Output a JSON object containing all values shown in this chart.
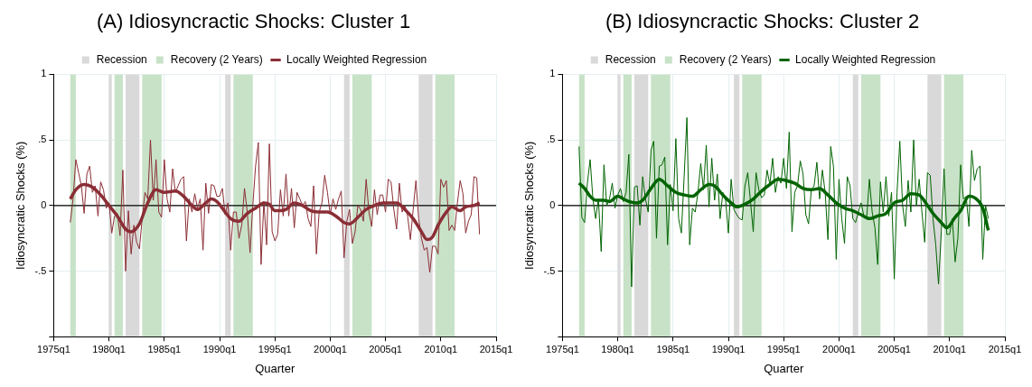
{
  "chart_data": [
    {
      "type": "line",
      "title": "(A) Idiosyncractic Shocks: Cluster 1",
      "xlabel": "Quarter",
      "ylabel": "Idiosyncratic Shocks (%)",
      "xlim": [
        "1975-01",
        "2015-01"
      ],
      "xticks": [
        {
          "value": "1975-01",
          "label": "1975q1"
        },
        {
          "value": "1980-01",
          "label": "1980q1"
        },
        {
          "value": "1985-01",
          "label": "1985q1"
        },
        {
          "value": "1990-01",
          "label": "1990q1"
        },
        {
          "value": "1995-01",
          "label": "1995q1"
        },
        {
          "value": "2000-01",
          "label": "2000q1"
        },
        {
          "value": "2005-01",
          "label": "2005q1"
        },
        {
          "value": "2010-01",
          "label": "2010q1"
        },
        {
          "value": "2015-01",
          "label": "2015q1"
        }
      ],
      "ylim": [
        -1,
        1
      ],
      "yticks": [
        {
          "value": -1,
          "label": null
        },
        {
          "value": -0.5,
          "label": "-.5"
        },
        {
          "value": 0,
          "label": "0"
        },
        {
          "value": 0.5,
          "label": ".5"
        },
        {
          "value": 1,
          "label": "1"
        }
      ],
      "grid": true,
      "legend": "top",
      "bands": [
        {
          "axis": "x",
          "from": "1980-01",
          "to": "1980-04",
          "label": "Recession",
          "color": "#d9d9d9"
        },
        {
          "axis": "x",
          "from": "1981-07",
          "to": "1982-10",
          "color": "#d9d9d9"
        },
        {
          "axis": "x",
          "from": "1990-07",
          "to": "1991-01",
          "color": "#d9d9d9"
        },
        {
          "axis": "x",
          "from": "2001-04",
          "to": "2001-10",
          "color": "#d9d9d9"
        },
        {
          "axis": "x",
          "from": "2008-01",
          "to": "2009-04",
          "color": "#d9d9d9"
        },
        {
          "axis": "x",
          "from": "1976-07",
          "to": "1977-01",
          "label": "Recovery (2 Years)",
          "color": "#c8e2c8"
        },
        {
          "axis": "x",
          "from": "1980-07",
          "to": "1981-04",
          "color": "#c8e2c8"
        },
        {
          "axis": "x",
          "from": "1983-01",
          "to": "1984-10",
          "color": "#c8e2c8"
        },
        {
          "axis": "x",
          "from": "1991-04",
          "to": "1993-01",
          "color": "#c8e2c8"
        },
        {
          "axis": "x",
          "from": "2002-01",
          "to": "2003-10",
          "color": "#c8e2c8"
        },
        {
          "axis": "x",
          "from": "2009-07",
          "to": "2011-04",
          "color": "#c8e2c8"
        }
      ],
      "ref_lines": [
        {
          "axis": "y",
          "value": 0,
          "color": "#000000"
        }
      ],
      "series": [
        {
          "color": "#8b2e35",
          "x": [
            "1976-07",
            "1976-10",
            "1977-01",
            "1977-04",
            "1977-07",
            "1977-10",
            "1978-01",
            "1978-04",
            "1978-07",
            "1978-10",
            "1979-01",
            "1979-04",
            "1979-07",
            "1979-10",
            "1980-01",
            "1980-04",
            "1980-07",
            "1980-10",
            "1981-01",
            "1981-04",
            "1981-07",
            "1981-10",
            "1982-01",
            "1982-04",
            "1982-07",
            "1982-10",
            "1983-01",
            "1983-04",
            "1983-07",
            "1983-10",
            "1984-01",
            "1984-04",
            "1984-07",
            "1984-10",
            "1985-01",
            "1985-04",
            "1985-07",
            "1985-10",
            "1986-01",
            "1986-04",
            "1986-07",
            "1986-10",
            "1987-01",
            "1987-04",
            "1987-07",
            "1987-10",
            "1988-01",
            "1988-04",
            "1988-07",
            "1988-10",
            "1989-01",
            "1989-04",
            "1989-07",
            "1989-10",
            "1990-01",
            "1990-04",
            "1990-07",
            "1990-10",
            "1991-01",
            "1991-04",
            "1991-07",
            "1991-10",
            "1992-01",
            "1992-04",
            "1992-07",
            "1992-10",
            "1993-01",
            "1993-04",
            "1993-07",
            "1993-10",
            "1994-01",
            "1994-04",
            "1994-07",
            "1994-10",
            "1995-01",
            "1995-04",
            "1995-07",
            "1995-10",
            "1996-01",
            "1996-04",
            "1996-07",
            "1996-10",
            "1997-01",
            "1997-04",
            "1997-07",
            "1997-10",
            "1998-01",
            "1998-04",
            "1998-07",
            "1998-10",
            "1999-01",
            "1999-04",
            "1999-07",
            "1999-10",
            "2000-01",
            "2000-04",
            "2000-07",
            "2000-10",
            "2001-01",
            "2001-04",
            "2001-07",
            "2001-10",
            "2002-01",
            "2002-04",
            "2002-07",
            "2002-10",
            "2003-01",
            "2003-04",
            "2003-07",
            "2003-10",
            "2004-01",
            "2004-04",
            "2004-07",
            "2004-10",
            "2005-01",
            "2005-04",
            "2005-07",
            "2005-10",
            "2006-01",
            "2006-04",
            "2006-07",
            "2006-10",
            "2007-01",
            "2007-04",
            "2007-07",
            "2007-10",
            "2008-01",
            "2008-04",
            "2008-07",
            "2008-10",
            "2009-01",
            "2009-04",
            "2009-07",
            "2009-10",
            "2010-01",
            "2010-04",
            "2010-07",
            "2010-10",
            "2011-01",
            "2011-04",
            "2011-07",
            "2011-10",
            "2012-01",
            "2012-04",
            "2012-07",
            "2012-10",
            "2013-01",
            "2013-04",
            "2013-07"
          ],
          "values": [
            -0.13,
            0.05,
            0.35,
            0.25,
            0.15,
            -0.06,
            0.24,
            0.3,
            0.1,
            0.15,
            -0.08,
            0.18,
            0.12,
            -0.02,
            0.02,
            -0.21,
            -0.08,
            -0.06,
            -0.23,
            0.27,
            -0.5,
            -0.04,
            -0.37,
            -0.15,
            -0.28,
            -0.33,
            -0.1,
            0.1,
            0.05,
            0.5,
            0.04,
            0.35,
            -0.05,
            -0.09,
            0.35,
            0.05,
            -0.05,
            0.28,
            0.1,
            0.15,
            0.2,
            0.22,
            -0.27,
            0.05,
            -0.05,
            0.09,
            -0.02,
            0.05,
            -0.34,
            0.17,
            -0.06,
            0.16,
            0.15,
            0.07,
            0.07,
            0.13,
            -0.07,
            0.02,
            -0.34,
            -0.05,
            -0.05,
            -0.25,
            -0.15,
            0.13,
            -0.05,
            -0.36,
            0,
            0.3,
            0.48,
            -0.45,
            0.03,
            -0.3,
            0.47,
            -0.2,
            -0.27,
            -0.22,
            0.12,
            -0.08,
            0.24,
            -0.08,
            0.13,
            -0.17,
            0.1,
            0.05,
            0,
            0.03,
            -0.1,
            -0.16,
            0.15,
            -0.37,
            -0.05,
            0.02,
            0.23,
            0.1,
            -0.07,
            0.05,
            -0.03,
            0.05,
            0.11,
            -0.4,
            -0.12,
            -0.03,
            -0.29,
            -0.2,
            0,
            -0.03,
            -0.12,
            0.2,
            -0.05,
            -0.16,
            0.12,
            -0.07,
            0.08,
            0.08,
            -0.05,
            0.2,
            0.18,
            -0.03,
            -0.18,
            0.17,
            -0.05,
            0,
            -0.08,
            -0.26,
            -0.03,
            0.19,
            -0.1,
            -0.25,
            -0.34,
            -0.32,
            -0.51,
            -0.31,
            -0.31,
            -0.37,
            0.2,
            0.14,
            0.19,
            -0.19,
            -0.15,
            -0.19,
            0.02,
            0.19,
            0.09,
            -0.21,
            -0.12,
            -0.07,
            0.22,
            0.21,
            -0.22
          ]
        },
        {
          "name": "Locally Weighted Regression",
          "color": "#8b2e35",
          "x": [
            "1976-07",
            "1977-01",
            "1977-10",
            "1978-07",
            "1979-04",
            "1980-01",
            "1980-10",
            "1981-07",
            "1982-01",
            "1982-10",
            "1983-07",
            "1984-04",
            "1985-01",
            "1986-01",
            "1986-10",
            "1987-07",
            "1988-01",
            "1988-10",
            "1989-04",
            "1989-10",
            "1990-07",
            "1991-01",
            "1991-10",
            "1992-07",
            "1993-04",
            "1994-01",
            "1994-07",
            "1995-01",
            "1995-07",
            "1996-01",
            "1996-10",
            "1997-07",
            "1998-04",
            "1999-01",
            "1999-10",
            "2000-07",
            "2001-04",
            "2001-10",
            "2002-07",
            "2003-04",
            "2004-01",
            "2004-10",
            "2005-07",
            "2006-01",
            "2006-10",
            "2007-07",
            "2008-04",
            "2008-10",
            "2009-04",
            "2009-10",
            "2010-07",
            "2011-01",
            "2011-10",
            "2012-04",
            "2013-01",
            "2013-07"
          ],
          "values": [
            0.05,
            0.12,
            0.16,
            0.14,
            0.08,
            0,
            -0.08,
            -0.18,
            -0.2,
            -0.14,
            0.02,
            0.12,
            0.1,
            0.11,
            0.07,
            0,
            -0.03,
            0.02,
            0.05,
            0.03,
            -0.05,
            -0.1,
            -0.12,
            -0.06,
            -0.02,
            0.02,
            0.01,
            -0.04,
            -0.04,
            -0.03,
            0.02,
            0,
            -0.04,
            -0.05,
            -0.05,
            -0.08,
            -0.13,
            -0.14,
            -0.09,
            -0.03,
            0,
            0.02,
            0.02,
            0.02,
            -0.03,
            -0.1,
            -0.2,
            -0.26,
            -0.24,
            -0.15,
            -0.05,
            -0.01,
            -0.04,
            -0.01,
            0,
            0.02
          ]
        }
      ]
    },
    {
      "type": "line",
      "title": "(B) Idiosyncractic Shocks: Cluster 2",
      "xlabel": "Quarter",
      "ylabel": "Idiosyncratic Shocks (%)",
      "xlim": [
        "1975-01",
        "2015-01"
      ],
      "xticks": [
        {
          "value": "1975-01",
          "label": "1975q1"
        },
        {
          "value": "1980-01",
          "label": "1980q1"
        },
        {
          "value": "1985-01",
          "label": "1985q1"
        },
        {
          "value": "1990-01",
          "label": "1990q1"
        },
        {
          "value": "1995-01",
          "label": "1995q1"
        },
        {
          "value": "2000-01",
          "label": "2000q1"
        },
        {
          "value": "2005-01",
          "label": "2005q1"
        },
        {
          "value": "2010-01",
          "label": "2010q1"
        },
        {
          "value": "2015-01",
          "label": "2015q1"
        }
      ],
      "ylim": [
        -1,
        1
      ],
      "yticks": [
        {
          "value": -1,
          "label": null
        },
        {
          "value": -0.5,
          "label": "-.5"
        },
        {
          "value": 0,
          "label": "0"
        },
        {
          "value": 0.5,
          "label": ".5"
        },
        {
          "value": 1,
          "label": "1"
        }
      ],
      "grid": true,
      "legend": "top",
      "bands": [
        {
          "axis": "x",
          "from": "1980-01",
          "to": "1980-04",
          "label": "Recession",
          "color": "#d9d9d9"
        },
        {
          "axis": "x",
          "from": "1981-07",
          "to": "1982-10",
          "color": "#d9d9d9"
        },
        {
          "axis": "x",
          "from": "1990-07",
          "to": "1991-01",
          "color": "#d9d9d9"
        },
        {
          "axis": "x",
          "from": "2001-04",
          "to": "2001-10",
          "color": "#d9d9d9"
        },
        {
          "axis": "x",
          "from": "2008-01",
          "to": "2009-04",
          "color": "#d9d9d9"
        },
        {
          "axis": "x",
          "from": "1976-07",
          "to": "1977-01",
          "label": "Recovery (2 Years)",
          "color": "#c8e2c8"
        },
        {
          "axis": "x",
          "from": "1980-07",
          "to": "1981-04",
          "color": "#c8e2c8"
        },
        {
          "axis": "x",
          "from": "1983-01",
          "to": "1984-10",
          "color": "#c8e2c8"
        },
        {
          "axis": "x",
          "from": "1991-04",
          "to": "1993-01",
          "color": "#c8e2c8"
        },
        {
          "axis": "x",
          "from": "2002-01",
          "to": "2003-10",
          "color": "#c8e2c8"
        },
        {
          "axis": "x",
          "from": "2009-07",
          "to": "2011-04",
          "color": "#c8e2c8"
        }
      ],
      "ref_lines": [
        {
          "axis": "y",
          "value": 0,
          "color": "#000000"
        }
      ],
      "series": [
        {
          "color": "#006400",
          "x": [
            "1976-07",
            "1976-10",
            "1977-01",
            "1977-04",
            "1977-07",
            "1977-10",
            "1978-01",
            "1978-04",
            "1978-07",
            "1978-10",
            "1979-01",
            "1979-04",
            "1979-07",
            "1979-10",
            "1980-01",
            "1980-04",
            "1980-07",
            "1980-10",
            "1981-01",
            "1981-04",
            "1981-07",
            "1981-10",
            "1982-01",
            "1982-04",
            "1982-07",
            "1982-10",
            "1983-01",
            "1983-04",
            "1983-07",
            "1983-10",
            "1984-01",
            "1984-04",
            "1984-07",
            "1984-10",
            "1985-01",
            "1985-04",
            "1985-07",
            "1985-10",
            "1986-01",
            "1986-04",
            "1986-07",
            "1986-10",
            "1987-01",
            "1987-04",
            "1987-07",
            "1987-10",
            "1988-01",
            "1988-04",
            "1988-07",
            "1988-10",
            "1989-01",
            "1989-04",
            "1989-07",
            "1989-10",
            "1990-01",
            "1990-04",
            "1990-07",
            "1990-10",
            "1991-01",
            "1991-04",
            "1991-07",
            "1991-10",
            "1992-01",
            "1992-04",
            "1992-07",
            "1992-10",
            "1993-01",
            "1993-04",
            "1993-07",
            "1993-10",
            "1994-01",
            "1994-04",
            "1994-07",
            "1994-10",
            "1995-01",
            "1995-04",
            "1995-07",
            "1995-10",
            "1996-01",
            "1996-04",
            "1996-07",
            "1996-10",
            "1997-01",
            "1997-04",
            "1997-07",
            "1997-10",
            "1998-01",
            "1998-04",
            "1998-07",
            "1998-10",
            "1999-01",
            "1999-04",
            "1999-07",
            "1999-10",
            "2000-01",
            "2000-04",
            "2000-07",
            "2000-10",
            "2001-01",
            "2001-04",
            "2001-07",
            "2001-10",
            "2002-01",
            "2002-04",
            "2002-07",
            "2002-10",
            "2003-01",
            "2003-04",
            "2003-07",
            "2003-10",
            "2004-01",
            "2004-04",
            "2004-07",
            "2004-10",
            "2005-01",
            "2005-04",
            "2005-07",
            "2005-10",
            "2006-01",
            "2006-04",
            "2006-07",
            "2006-10",
            "2007-01",
            "2007-04",
            "2007-07",
            "2007-10",
            "2008-01",
            "2008-04",
            "2008-07",
            "2008-10",
            "2009-01",
            "2009-04",
            "2009-07",
            "2009-10",
            "2010-01",
            "2010-04",
            "2010-07",
            "2010-10",
            "2011-01",
            "2011-04",
            "2011-07",
            "2011-10",
            "2012-01",
            "2012-04",
            "2012-07",
            "2012-10",
            "2013-01",
            "2013-04",
            "2013-07"
          ],
          "values": [
            0.45,
            -0.09,
            -0.13,
            0.17,
            0.35,
            0.05,
            -0.1,
            0.05,
            -0.35,
            0.31,
            0,
            0.05,
            0.17,
            -0.02,
            0.08,
            0.13,
            0.03,
            0.1,
            0.39,
            -0.62,
            0.14,
            0.15,
            -0.15,
            0.22,
            0.05,
            -0.05,
            0.42,
            0.49,
            -0.25,
            0.3,
            0.31,
            0.37,
            -0.3,
            0.16,
            -0.04,
            0.51,
            -0.1,
            -0.21,
            0.22,
            0.67,
            -0.3,
            -0.02,
            -0.05,
            0.1,
            0.32,
            0.12,
            0.46,
            -0.01,
            0.36,
            0.04,
            0.24,
            -0.1,
            0.1,
            0.04,
            -0.21,
            0.2,
            -0.03,
            -0.07,
            -0.1,
            -0.11,
            0.15,
            0.25,
            0.03,
            -0.2,
            0.25,
            0.12,
            0.06,
            0.08,
            0.27,
            0.16,
            0.36,
            0.1,
            0.22,
            0.17,
            0.36,
            0.13,
            0.56,
            -0.2,
            0.1,
            0.15,
            0.34,
            0.24,
            -0.07,
            -0.14,
            0.12,
            0.15,
            0.33,
            0.05,
            0.27,
            0.1,
            -0.26,
            0.45,
            0.3,
            -0.41,
            0.2,
            -0.1,
            -0.29,
            0.22,
            0.15,
            -0.1,
            -0.13,
            -0.05,
            0.02,
            -0.08,
            -0.1,
            0.2,
            -0.05,
            -0.17,
            -0.45,
            0.18,
            -0.05,
            0.22,
            -0.08,
            0.1,
            -0.56,
            0.1,
            0.49,
            0,
            -0.16,
            0.19,
            -0.05,
            0.5,
            0,
            0.2,
            -0.05,
            -0.28,
            0.25,
            0.23,
            -0.1,
            -0.3,
            -0.6,
            -0.2,
            0.28,
            -0.22,
            -0.22,
            -0.1,
            -0.43,
            -0.25,
            0.31,
            0.05,
            0.07,
            -0.16,
            0.42,
            0.19,
            0.28,
            0.3,
            -0.41,
            0,
            -0.1
          ]
        },
        {
          "name": "Locally Weighted Regression",
          "color": "#006400",
          "x": [
            "1976-07",
            "1977-01",
            "1977-07",
            "1978-01",
            "1978-10",
            "1979-04",
            "1980-01",
            "1980-07",
            "1981-01",
            "1981-10",
            "1982-04",
            "1983-01",
            "1983-10",
            "1984-07",
            "1985-04",
            "1986-01",
            "1986-10",
            "1987-07",
            "1988-04",
            "1988-10",
            "1989-07",
            "1990-04",
            "1990-10",
            "1991-07",
            "1992-04",
            "1993-01",
            "1993-10",
            "1994-07",
            "1995-04",
            "1996-01",
            "1996-10",
            "1997-07",
            "1998-04",
            "1999-01",
            "1999-10",
            "2000-07",
            "2001-04",
            "2002-01",
            "2002-10",
            "2003-07",
            "2004-04",
            "2005-01",
            "2005-10",
            "2006-07",
            "2007-04",
            "2008-01",
            "2008-07",
            "2009-04",
            "2009-10",
            "2010-07",
            "2011-01",
            "2011-10",
            "2012-04",
            "2013-01",
            "2013-07"
          ],
          "values": [
            0.17,
            0.13,
            0.07,
            0.04,
            0.04,
            0.03,
            0.07,
            0.05,
            0.03,
            0.02,
            0.04,
            0.13,
            0.2,
            0.15,
            0.1,
            0.08,
            0.07,
            0.12,
            0.16,
            0.15,
            0.08,
            0.02,
            -0.01,
            0.01,
            0.05,
            0.11,
            0.16,
            0.2,
            0.19,
            0.17,
            0.13,
            0.12,
            0.13,
            0.08,
            0.02,
            -0.02,
            -0.04,
            -0.07,
            -0.1,
            -0.08,
            -0.06,
            0.02,
            0.04,
            0.09,
            0.08,
            0,
            -0.06,
            -0.13,
            -0.17,
            -0.09,
            -0.04,
            0.07,
            0.06,
            -0.02,
            -0.19
          ]
        }
      ]
    }
  ]
}
